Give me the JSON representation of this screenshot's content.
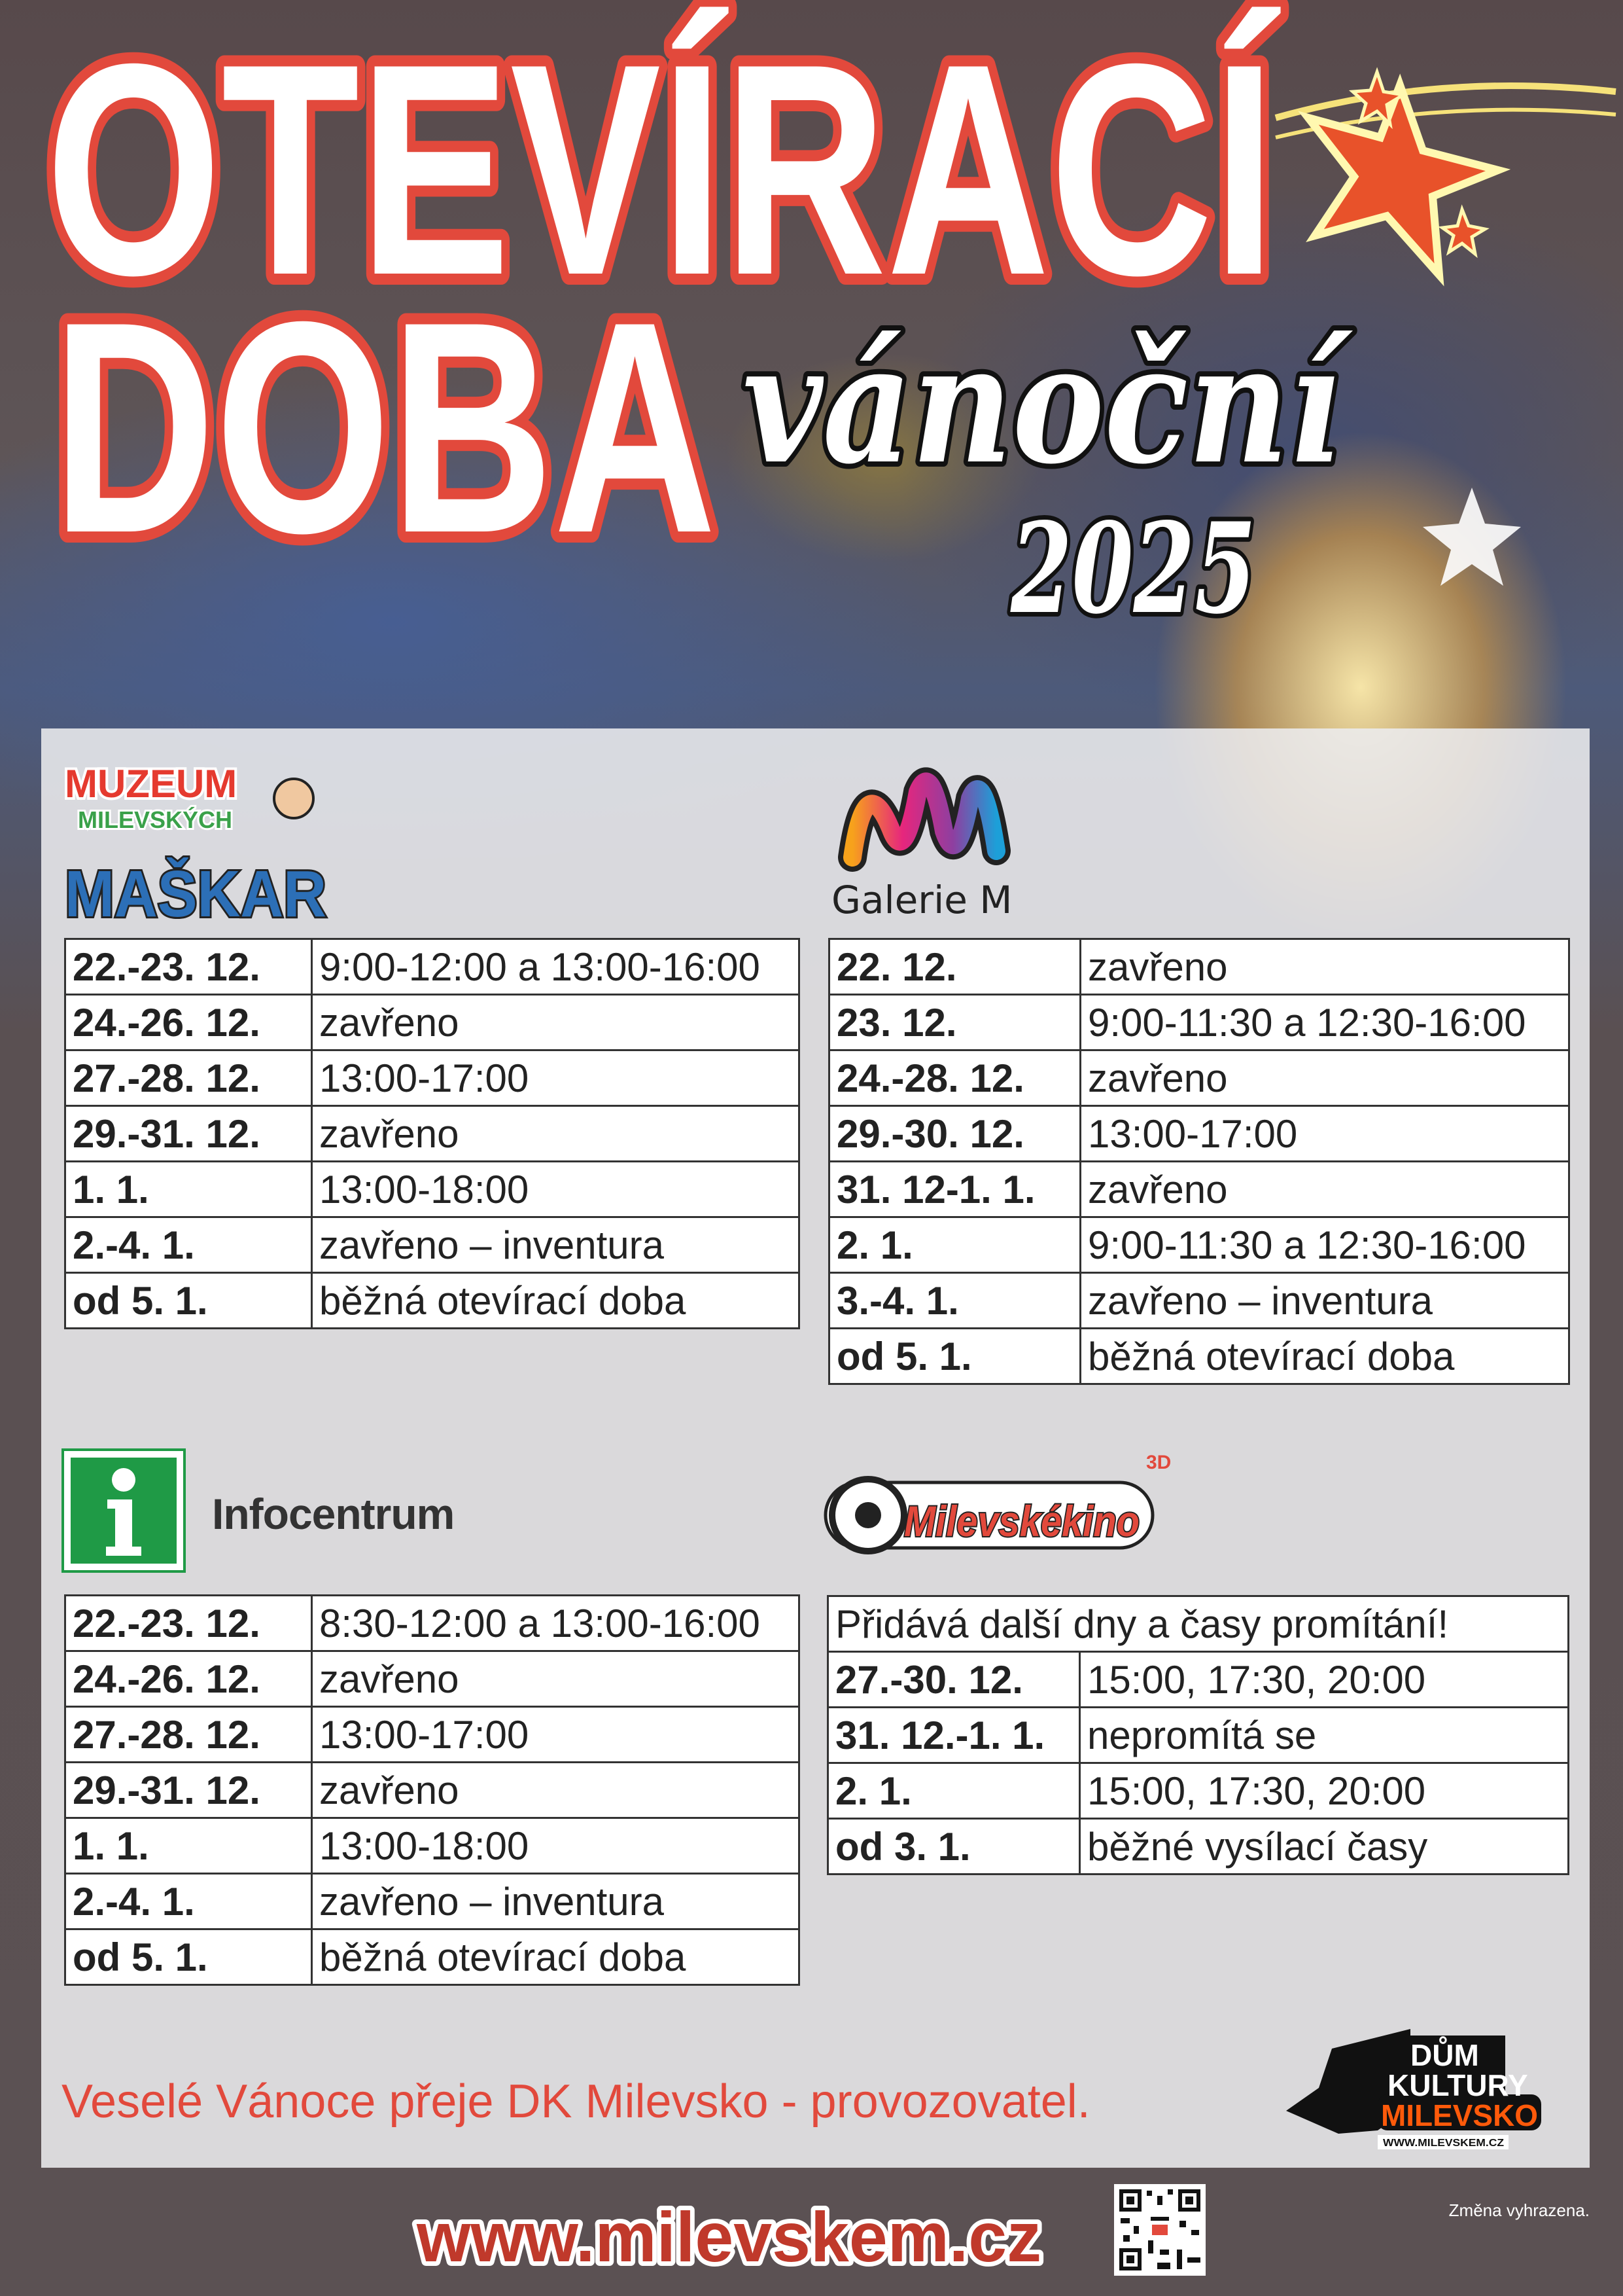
{
  "header": {
    "title_line1": "OTEVÍRACÍ",
    "title_line2": "DOBA",
    "script_word": "vánoční",
    "year": "2025"
  },
  "colors": {
    "title_outline": "#e2493c",
    "footer_red": "#e2493c",
    "url_red": "#c0392b",
    "info_green": "#1f9a46",
    "dk_orange": "#ff5a0a"
  },
  "muzeum": {
    "logo_text": [
      "MUZEUM",
      "MILEVSKÝCH",
      "MAŠKAR"
    ],
    "rows": [
      [
        "22.-23. 12.",
        "9:00-12:00 a 13:00-16:00"
      ],
      [
        "24.-26. 12.",
        "zavřeno"
      ],
      [
        "27.-28. 12.",
        "13:00-17:00"
      ],
      [
        "29.-31. 12.",
        "zavřeno"
      ],
      [
        "1. 1.",
        "13:00-18:00"
      ],
      [
        "2.-4. 1.",
        "zavřeno – inventura"
      ],
      [
        "od 5. 1.",
        "běžná otevírací doba"
      ]
    ]
  },
  "galerie": {
    "logo_text": "Galerie M",
    "rows": [
      [
        "22. 12.",
        "zavřeno"
      ],
      [
        "23. 12.",
        "9:00-11:30 a 12:30-16:00"
      ],
      [
        "24.-28. 12.",
        "zavřeno"
      ],
      [
        "29.-30. 12.",
        "13:00-17:00"
      ],
      [
        "31. 12-1. 1.",
        "zavřeno"
      ],
      [
        "2. 1.",
        "9:00-11:30 a 12:30-16:00"
      ],
      [
        "3.-4. 1.",
        "zavřeno – inventura"
      ],
      [
        "od 5. 1.",
        "běžná otevírací doba"
      ]
    ]
  },
  "infocentrum": {
    "label": "Infocentrum",
    "icon": "info-icon",
    "rows": [
      [
        "22.-23. 12.",
        "8:30-12:00 a 13:00-16:00"
      ],
      [
        "24.-26. 12.",
        "zavřeno"
      ],
      [
        "27.-28. 12.",
        "13:00-17:00"
      ],
      [
        "29.-31. 12.",
        "zavřeno"
      ],
      [
        "1. 1.",
        "13:00-18:00"
      ],
      [
        "2.-4. 1.",
        "zavřeno – inventura"
      ],
      [
        "od 5. 1.",
        "běžná otevírací doba"
      ]
    ]
  },
  "kino": {
    "logo_text": "Milevskékino",
    "logo_badge": "3D",
    "header": "Přidává další dny a časy promítání!",
    "rows": [
      [
        "27.-30. 12.",
        "15:00, 17:30, 20:00"
      ],
      [
        "31. 12.-1. 1.",
        "nepromítá se"
      ],
      [
        "2. 1.",
        "15:00, 17:30, 20:00"
      ],
      [
        "od 3. 1.",
        "běžné vysílací časy"
      ]
    ]
  },
  "footer": {
    "greeting": "Veselé Vánoce přeje DK Milevsko - provozovatel.",
    "note": "Změna vyhrazena.",
    "url": "www.milevskem.cz",
    "dk_logo": [
      "DŮM",
      "KULTURY",
      "MILEVSKO",
      "WWW.MILEVSKEM.CZ"
    ]
  }
}
